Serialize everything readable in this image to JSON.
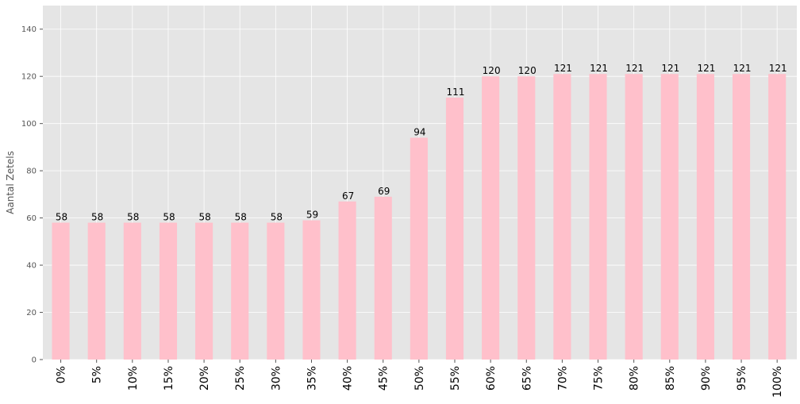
{
  "chart_data": {
    "type": "bar",
    "categories": [
      "0%",
      "5%",
      "10%",
      "15%",
      "20%",
      "25%",
      "30%",
      "35%",
      "40%",
      "45%",
      "50%",
      "55%",
      "60%",
      "65%",
      "70%",
      "75%",
      "80%",
      "85%",
      "90%",
      "95%",
      "100%"
    ],
    "values": [
      58,
      58,
      58,
      58,
      58,
      58,
      58,
      59,
      67,
      69,
      94,
      111,
      120,
      120,
      121,
      121,
      121,
      121,
      121,
      121,
      121
    ],
    "title": "",
    "xlabel": "",
    "ylabel": "Aantal Zetels",
    "ylim": [
      0,
      150
    ],
    "yticks": [
      0,
      20,
      40,
      60,
      80,
      100,
      120,
      140
    ],
    "grid": true,
    "bar_color": "#ffc0cb",
    "background_color": "#e5e5e5",
    "grid_color": "#ffffff"
  }
}
